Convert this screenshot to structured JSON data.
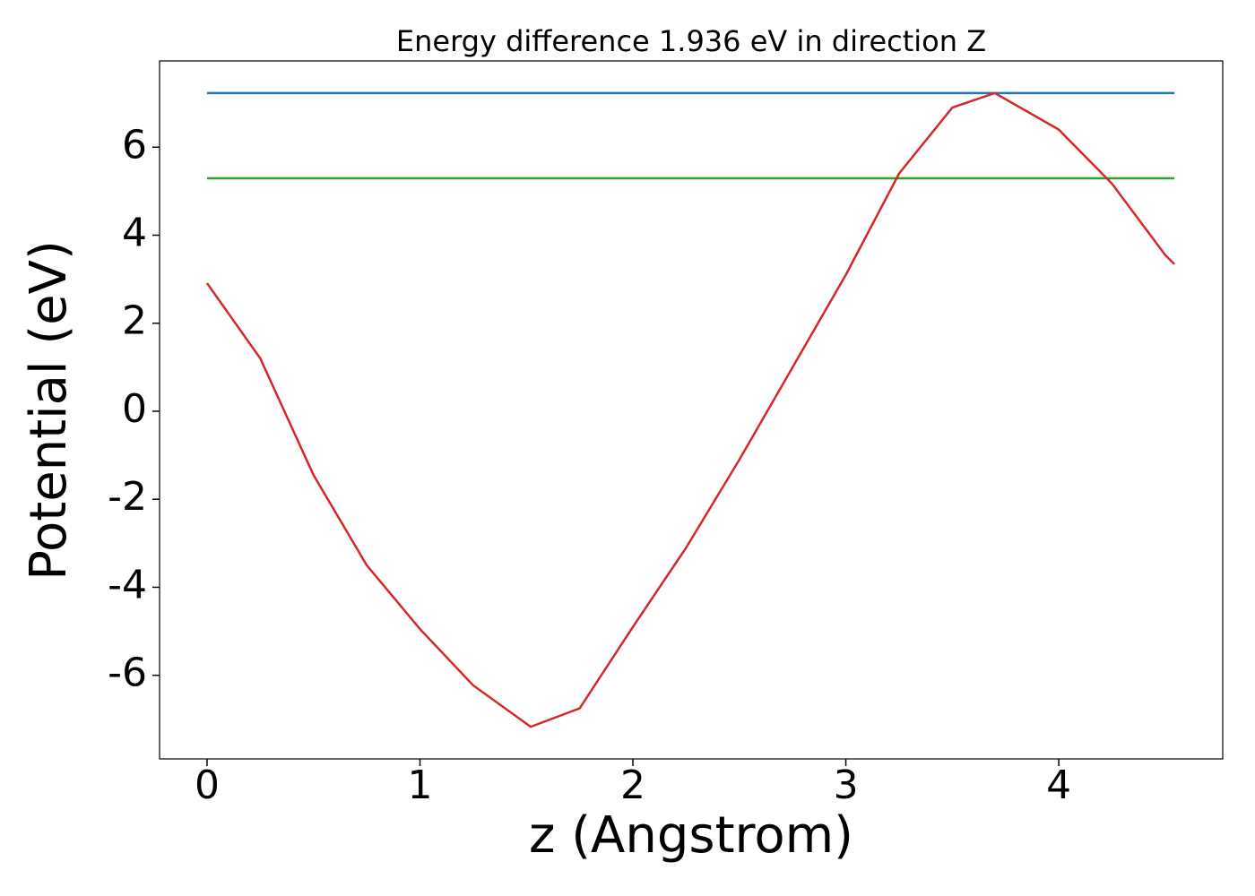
{
  "chart_data": {
    "type": "line",
    "title": "Energy difference 1.936 eV in direction Z",
    "x_label": "z (Angstrom)",
    "y_label": "Potential (eV)",
    "xlim": [
      -0.223,
      4.77
    ],
    "ylim": [
      -7.9,
      7.96
    ],
    "xticks": [
      0,
      1,
      2,
      3,
      4
    ],
    "yticks": [
      -6,
      -4,
      -2,
      0,
      2,
      4,
      6
    ],
    "grid": false,
    "series": [
      {
        "color": "#1f77b4",
        "x": [
          0,
          4.543
        ],
        "values": [
          7.23,
          7.23
        ]
      },
      {
        "color": "#2ca02c",
        "x": [
          0,
          4.543
        ],
        "values": [
          5.294,
          5.294
        ]
      },
      {
        "color": "#d62728",
        "x": [
          0,
          0.25,
          0.5,
          0.75,
          1.0,
          1.25,
          1.52,
          1.75,
          2.0,
          2.25,
          2.5,
          2.75,
          3.0,
          3.25,
          3.5,
          3.7,
          4.0,
          4.25,
          4.5,
          4.543
        ],
        "values": [
          2.91,
          1.2,
          -1.45,
          -3.5,
          -4.95,
          -6.23,
          -7.17,
          -6.75,
          -4.9,
          -3.1,
          -1.1,
          1.0,
          3.1,
          5.4,
          6.9,
          7.23,
          6.4,
          5.17,
          3.55,
          3.34
        ]
      }
    ]
  }
}
